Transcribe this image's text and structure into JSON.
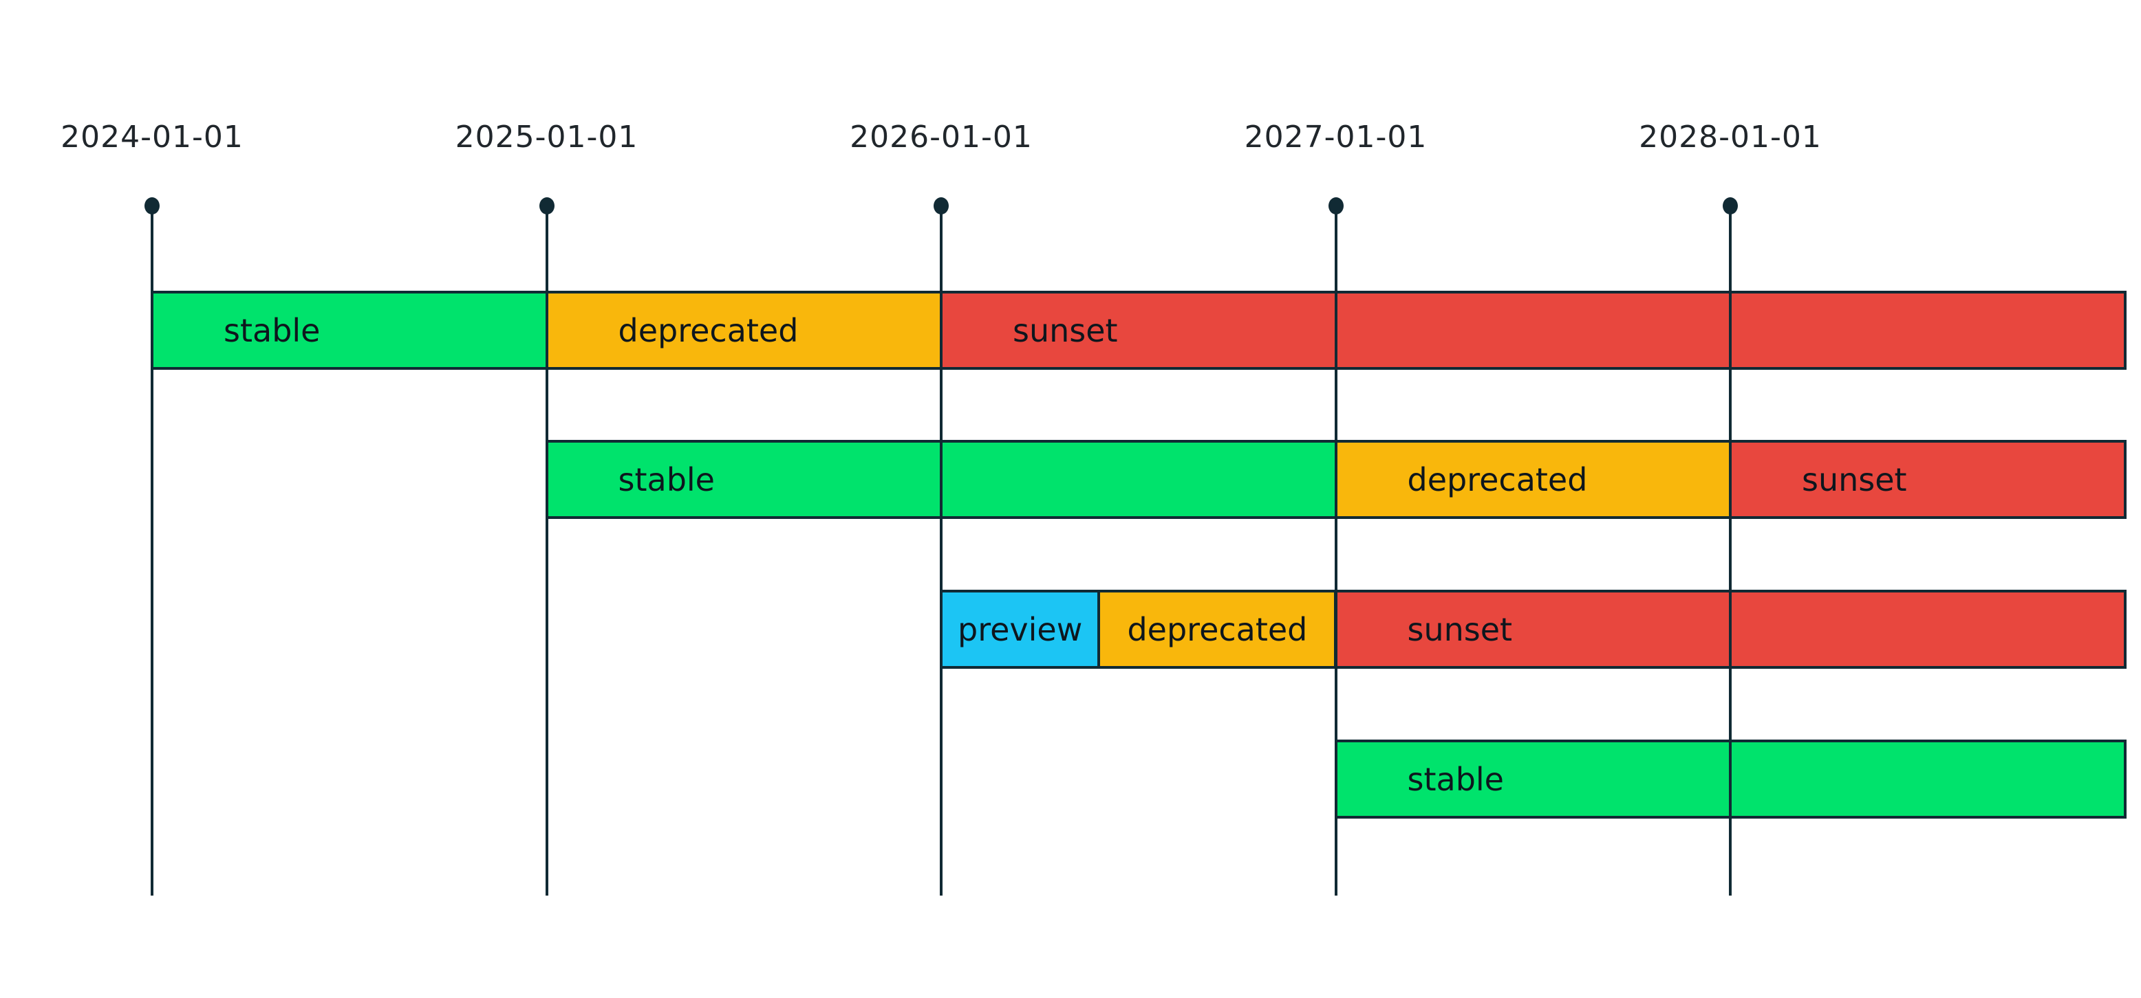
{
  "colors": {
    "background": "#ffffff",
    "axis": "#112a34",
    "border": "#112a34",
    "tick_text": "#20262b",
    "bar_label_text": "#0e161d",
    "stable": "#00e36c",
    "deprecated": "#f9b70c",
    "sunset": "#e8473e",
    "preview": "#1cc5f4"
  },
  "chart_data": {
    "type": "timeline-gantt",
    "title": "",
    "x_axis": {
      "tick_labels": [
        "2024-01-01",
        "2025-01-01",
        "2026-01-01",
        "2027-01-01",
        "2028-01-01"
      ],
      "domain_start": 2024,
      "domain_end": 2029,
      "units": "year"
    },
    "states": [
      "stable",
      "deprecated",
      "sunset",
      "preview"
    ],
    "rows": [
      {
        "segments": [
          {
            "state": "stable",
            "label": "stable",
            "start": 2024,
            "end": 2025
          },
          {
            "state": "deprecated",
            "label": "deprecated",
            "start": 2025,
            "end": 2026
          },
          {
            "state": "sunset",
            "label": "sunset",
            "start": 2026,
            "end": 2027
          },
          {
            "state": "sunset",
            "label": "",
            "start": 2027,
            "end": 2028
          },
          {
            "state": "sunset",
            "label": "",
            "start": 2028,
            "end": 2029
          }
        ]
      },
      {
        "segments": [
          {
            "state": "stable",
            "label": "stable",
            "start": 2025,
            "end": 2026
          },
          {
            "state": "stable",
            "label": "",
            "start": 2026,
            "end": 2027
          },
          {
            "state": "deprecated",
            "label": "deprecated",
            "start": 2027,
            "end": 2028
          },
          {
            "state": "sunset",
            "label": "sunset",
            "start": 2028,
            "end": 2029
          }
        ]
      },
      {
        "segments": [
          {
            "state": "preview",
            "label": "preview",
            "start": 2026,
            "end": 2026.4
          },
          {
            "state": "deprecated",
            "label": "deprecated",
            "start": 2026.4,
            "end": 2027
          },
          {
            "state": "sunset",
            "label": "sunset",
            "start": 2027,
            "end": 2028
          },
          {
            "state": "sunset",
            "label": "",
            "start": 2028,
            "end": 2029
          }
        ]
      },
      {
        "segments": [
          {
            "state": "stable",
            "label": "stable",
            "start": 2027,
            "end": 2028
          },
          {
            "state": "stable",
            "label": "",
            "start": 2028,
            "end": 2029
          }
        ]
      }
    ],
    "legend": null
  }
}
